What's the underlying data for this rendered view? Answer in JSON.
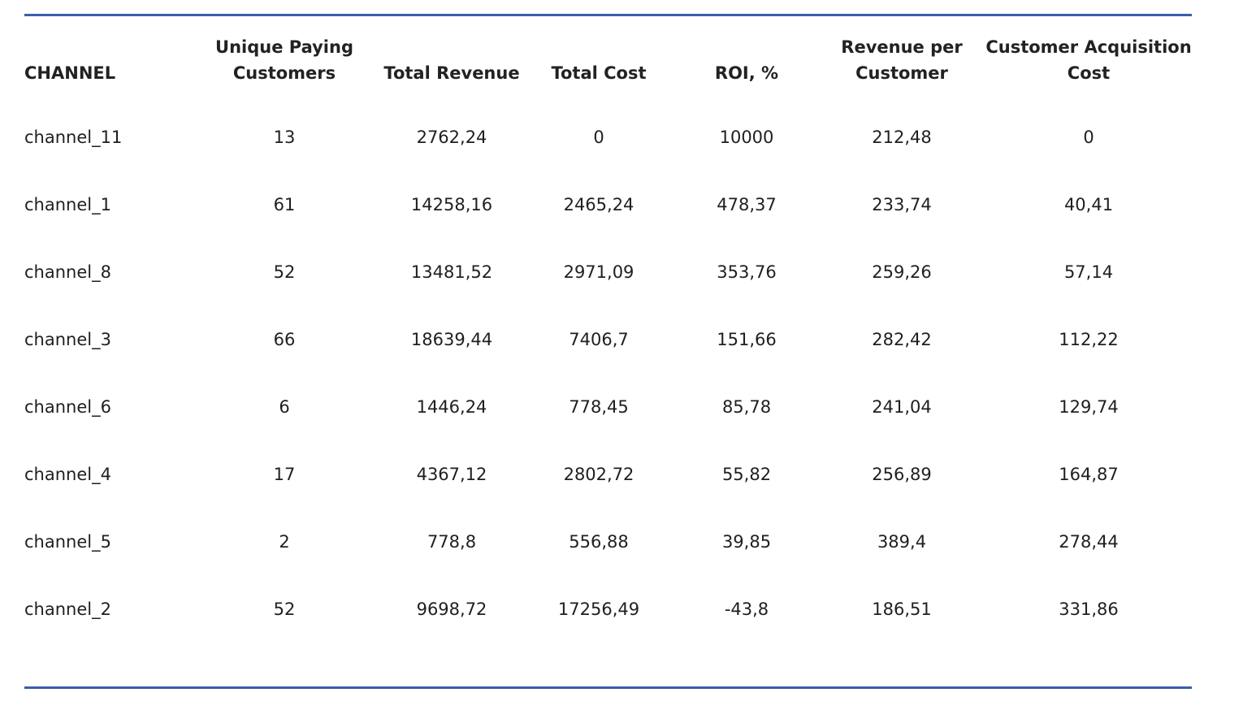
{
  "table": {
    "headers": [
      "CHANNEL",
      "Unique Paying Customers",
      "Total Revenue",
      "Total Cost",
      "ROI, %",
      "Revenue per Customer",
      "Customer Acquisition Cost"
    ],
    "header_lines": [
      [
        "CHANNEL"
      ],
      [
        "Unique Paying",
        "Customers"
      ],
      [
        "Total Revenue"
      ],
      [
        "Total Cost"
      ],
      [
        "ROI, %"
      ],
      [
        "Revenue per",
        "Customer"
      ],
      [
        "Customer Acquisition",
        "Cost"
      ]
    ],
    "rows": [
      [
        "channel_11",
        "13",
        "2762,24",
        "0",
        "10000",
        "212,48",
        "0"
      ],
      [
        "channel_1",
        "61",
        "14258,16",
        "2465,24",
        "478,37",
        "233,74",
        "40,41"
      ],
      [
        "channel_8",
        "52",
        "13481,52",
        "2971,09",
        "353,76",
        "259,26",
        "57,14"
      ],
      [
        "channel_3",
        "66",
        "18639,44",
        "7406,7",
        "151,66",
        "282,42",
        "112,22"
      ],
      [
        "channel_6",
        "6",
        "1446,24",
        "778,45",
        "85,78",
        "241,04",
        "129,74"
      ],
      [
        "channel_4",
        "17",
        "4367,12",
        "2802,72",
        "55,82",
        "256,89",
        "164,87"
      ],
      [
        "channel_5",
        "2",
        "778,8",
        "556,88",
        "39,85",
        "389,4",
        "278,44"
      ],
      [
        "channel_2",
        "52",
        "9698,72",
        "17256,49",
        "-43,8",
        "186,51",
        "331,86"
      ]
    ]
  },
  "colors": {
    "rule": "#3a5ea8",
    "text": "#1f1f1f"
  }
}
